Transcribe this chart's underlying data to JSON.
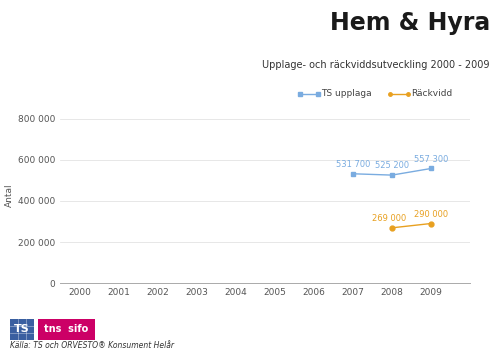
{
  "title": "Hem & Hyra",
  "subtitle": "Upplage- och räckviddsutveckling 2000 - 2009",
  "ylabel": "Antal",
  "source_text": "Källa: TS och ORVESTO® Konsument Helår",
  "xlim": [
    1999.5,
    2010.0
  ],
  "ylim": [
    0,
    860000
  ],
  "xticks": [
    2000,
    2001,
    2002,
    2003,
    2004,
    2005,
    2006,
    2007,
    2008,
    2009
  ],
  "yticks": [
    0,
    200000,
    400000,
    600000,
    800000
  ],
  "ytick_labels": [
    "0",
    "200 000",
    "400 000",
    "600 000",
    "800 000"
  ],
  "blue_series": {
    "label": "TS upplaga",
    "years": [
      2007,
      2008,
      2009
    ],
    "values": [
      531700,
      525200,
      557300
    ],
    "annotations": [
      "531 700",
      "525 200",
      "557 300"
    ],
    "color": "#7aace0",
    "marker": "s",
    "markersize": 3.5
  },
  "orange_series": {
    "label": "Räckvidd",
    "years": [
      2008,
      2009
    ],
    "values": [
      269000,
      290000
    ],
    "annotations": [
      "269 000",
      "290 000"
    ],
    "color": "#e8a020",
    "marker": "o",
    "markersize": 3.5
  },
  "background_color": "#ffffff",
  "grid_color": "#dddddd",
  "axis_color": "#aaaaaa",
  "title_fontsize": 17,
  "subtitle_fontsize": 7,
  "annotation_fontsize": 6,
  "label_fontsize": 6.5,
  "tick_fontsize": 6.5,
  "legend_fontsize": 6.5
}
